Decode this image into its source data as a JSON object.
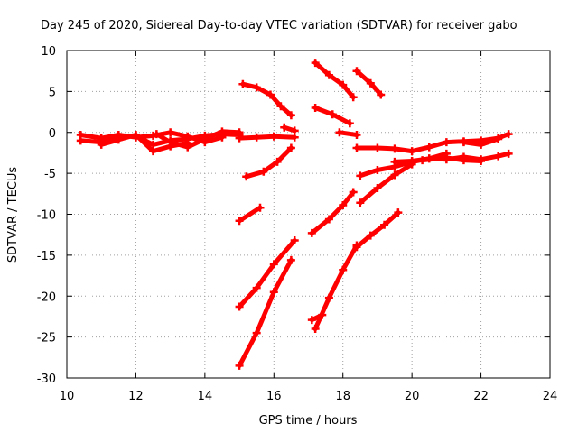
{
  "chart_data": {
    "type": "scatter",
    "title": "Day 245 of 2020, Sidereal Day-to-day VTEC variation (SDTVAR) for receiver gabo",
    "xlabel": "GPS time / hours",
    "ylabel": "SDTVAR / TECUs",
    "xlim": [
      10,
      24
    ],
    "ylim": [
      -30,
      10
    ],
    "xticks": [
      10,
      12,
      14,
      16,
      18,
      20,
      22,
      24
    ],
    "yticks": [
      10,
      5,
      0,
      -5,
      -10,
      -15,
      -20,
      -25,
      -30
    ],
    "grid": true,
    "marker": "+",
    "color": "#ff0000",
    "series": [
      {
        "x": [
          10.4,
          11.0,
          11.5,
          12.0,
          12.5,
          13.0,
          13.5,
          14.0,
          14.5,
          15.0
        ],
        "y": [
          -1.0,
          -1.2,
          -0.5,
          -0.4,
          -1.5,
          -1.0,
          -0.8,
          -0.4,
          -0.2,
          -0.3
        ]
      },
      {
        "x": [
          10.4,
          11.0,
          11.5,
          12.0,
          12.5,
          13.0,
          13.5,
          14.0,
          14.5
        ],
        "y": [
          -0.3,
          -0.7,
          -0.3,
          -0.6,
          -0.4,
          0.0,
          -0.5,
          -1.2,
          -0.6
        ]
      },
      {
        "x": [
          11.0,
          11.5,
          12.0,
          12.5,
          13.0,
          13.5
        ],
        "y": [
          -1.5,
          -0.9,
          -0.3,
          -2.3,
          -1.7,
          -1.3
        ]
      },
      {
        "x": [
          12.6,
          13.0,
          13.5,
          14.0,
          14.5,
          15.0
        ],
        "y": [
          -0.2,
          -1.2,
          -1.8,
          -0.8,
          0.1,
          0.0
        ]
      },
      {
        "x": [
          15.0,
          15.5,
          16.0,
          16.6
        ],
        "y": [
          -0.7,
          -0.6,
          -0.5,
          -0.6
        ]
      },
      {
        "x": [
          15.1,
          15.5,
          15.9,
          16.2,
          16.5
        ],
        "y": [
          5.9,
          5.5,
          4.6,
          3.2,
          2.1
        ]
      },
      {
        "x": [
          16.3,
          16.6
        ],
        "y": [
          0.6,
          0.2
        ]
      },
      {
        "x": [
          15.2,
          15.7,
          16.1,
          16.5
        ],
        "y": [
          -5.4,
          -4.8,
          -3.6,
          -1.9
        ]
      },
      {
        "x": [
          15.0,
          15.6
        ],
        "y": [
          -10.8,
          -9.2
        ]
      },
      {
        "x": [
          15.0,
          15.5,
          16.0,
          16.6
        ],
        "y": [
          -21.3,
          -19.0,
          -16.1,
          -13.2
        ]
      },
      {
        "x": [
          15.0,
          15.5,
          16.0,
          16.5
        ],
        "y": [
          -28.5,
          -24.5,
          -19.5,
          -15.6
        ]
      },
      {
        "x": [
          17.2,
          17.6,
          18.0,
          18.3
        ],
        "y": [
          8.5,
          7.0,
          5.8,
          4.3
        ]
      },
      {
        "x": [
          17.2,
          17.7,
          18.2
        ],
        "y": [
          3.0,
          2.2,
          1.1
        ]
      },
      {
        "x": [
          17.9,
          18.4
        ],
        "y": [
          0.0,
          -0.3
        ]
      },
      {
        "x": [
          18.4,
          18.8,
          19.1
        ],
        "y": [
          7.5,
          6.0,
          4.6
        ]
      },
      {
        "x": [
          17.1,
          17.6,
          18.0,
          18.3
        ],
        "y": [
          -12.3,
          -10.6,
          -8.9,
          -7.3
        ]
      },
      {
        "x": [
          17.1,
          17.4
        ],
        "y": [
          -22.9,
          -22.3
        ]
      },
      {
        "x": [
          17.2,
          17.6,
          18.0,
          18.4
        ],
        "y": [
          -24.0,
          -20.2,
          -16.8,
          -13.8
        ]
      },
      {
        "x": [
          18.4,
          18.8,
          19.2,
          19.6
        ],
        "y": [
          -14.0,
          -12.6,
          -11.3,
          -9.8
        ]
      },
      {
        "x": [
          18.5,
          19.0,
          19.5,
          20.0
        ],
        "y": [
          -8.6,
          -6.8,
          -5.2,
          -3.9
        ]
      },
      {
        "x": [
          18.5,
          19.0,
          19.5,
          20.0,
          20.5,
          21.0
        ],
        "y": [
          -5.3,
          -4.6,
          -4.2,
          -3.6,
          -3.2,
          -2.6
        ]
      },
      {
        "x": [
          18.4,
          19.0,
          19.5,
          20.0,
          20.5,
          21.0,
          21.5,
          22.0,
          22.5,
          22.8
        ],
        "y": [
          -1.9,
          -1.9,
          -2.0,
          -2.3,
          -1.8,
          -1.2,
          -1.1,
          -1.0,
          -0.7,
          -0.2
        ]
      },
      {
        "x": [
          19.5,
          20.0,
          20.5,
          21.0,
          21.5,
          22.0,
          22.5,
          22.8
        ],
        "y": [
          -3.6,
          -3.5,
          -3.2,
          -3.3,
          -3.0,
          -3.3,
          -2.9,
          -2.6
        ]
      },
      {
        "x": [
          20.3,
          21.0,
          21.5,
          22.0
        ],
        "y": [
          -3.4,
          -3.1,
          -3.4,
          -3.5
        ]
      },
      {
        "x": [
          21.5,
          22.0,
          22.5
        ],
        "y": [
          -1.2,
          -1.5,
          -0.8
        ]
      }
    ]
  }
}
